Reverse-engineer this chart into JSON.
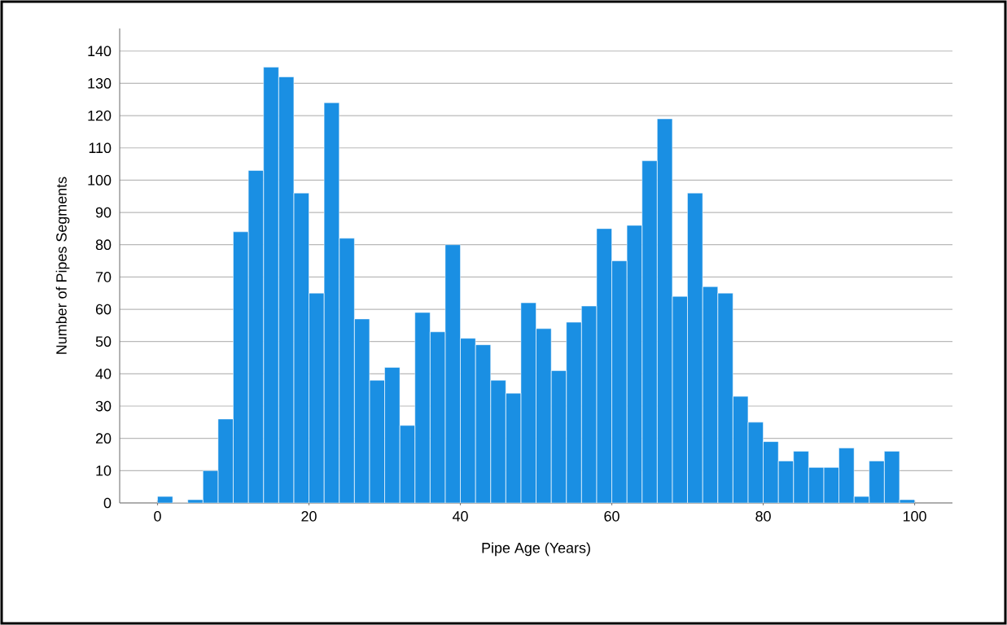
{
  "chart_data": {
    "type": "histogram",
    "xlabel": "Pipe Age (Years)",
    "ylabel": "Number of Pipes Segments",
    "bins": [
      0,
      2,
      4,
      6,
      8,
      10,
      12,
      14,
      16,
      18,
      20,
      22,
      24,
      26,
      28,
      30,
      32,
      34,
      36,
      38,
      40,
      42,
      44,
      46,
      48,
      50,
      52,
      54,
      56,
      58,
      60,
      62,
      64,
      66,
      68,
      70,
      72,
      74,
      76,
      78,
      80,
      82,
      84,
      86,
      88,
      90,
      92,
      94,
      96,
      98,
      100
    ],
    "values": [
      2,
      0,
      1,
      10,
      26,
      84,
      103,
      135,
      132,
      96,
      65,
      124,
      82,
      57,
      38,
      42,
      24,
      59,
      53,
      80,
      51,
      49,
      38,
      34,
      62,
      54,
      41,
      56,
      61,
      85,
      75,
      86,
      106,
      119,
      64,
      96,
      67,
      65,
      33,
      25,
      19,
      13,
      16,
      11,
      11,
      17,
      2,
      13,
      16,
      1
    ],
    "color": "#1a8fe3",
    "xlim": [
      -5,
      105
    ],
    "xticks": [
      0,
      20,
      40,
      60,
      80,
      100
    ],
    "ylim": [
      0,
      147
    ],
    "yticks": [
      0,
      10,
      20,
      30,
      40,
      50,
      60,
      70,
      80,
      90,
      100,
      110,
      120,
      130,
      140
    ],
    "grid": "y"
  }
}
